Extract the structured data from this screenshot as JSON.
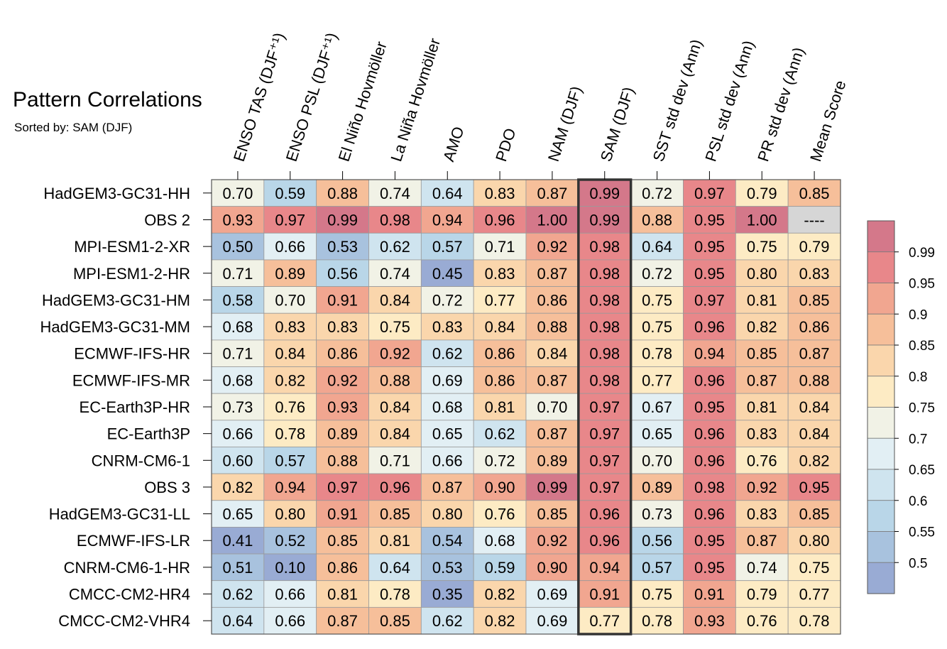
{
  "title": "Pattern Correlations",
  "subtitle": "Sorted by: SAM (DJF)",
  "chart_data": {
    "type": "heatmap",
    "columns": [
      "ENSO TAS (DJF⁺¹)",
      "ENSO PSL (DJF⁺¹)",
      "El Niño Hovmöller",
      "La Niña Hovmöller",
      "AMO",
      "PDO",
      "NAM (DJF)",
      "SAM (DJF)",
      "SST std dev (Ann)",
      "PSL std dev (Ann)",
      "PR std dev (Ann)",
      "Mean Score"
    ],
    "highlight_column": "SAM (DJF)",
    "rows": [
      {
        "label": "HadGEM3-GC31-HH",
        "values": [
          0.7,
          0.59,
          0.88,
          0.74,
          0.64,
          0.83,
          0.87,
          0.99,
          0.72,
          0.97,
          0.79,
          0.85
        ]
      },
      {
        "label": "OBS 2",
        "values": [
          0.93,
          0.97,
          0.99,
          0.98,
          0.94,
          0.96,
          1.0,
          0.99,
          0.88,
          0.95,
          1.0,
          null
        ]
      },
      {
        "label": "MPI-ESM1-2-XR",
        "values": [
          0.5,
          0.66,
          0.53,
          0.62,
          0.57,
          0.71,
          0.92,
          0.98,
          0.64,
          0.95,
          0.75,
          0.79
        ]
      },
      {
        "label": "MPI-ESM1-2-HR",
        "values": [
          0.71,
          0.89,
          0.56,
          0.74,
          0.45,
          0.83,
          0.87,
          0.98,
          0.72,
          0.95,
          0.8,
          0.83
        ]
      },
      {
        "label": "HadGEM3-GC31-HM",
        "values": [
          0.58,
          0.7,
          0.91,
          0.84,
          0.72,
          0.77,
          0.86,
          0.98,
          0.75,
          0.97,
          0.81,
          0.85
        ]
      },
      {
        "label": "HadGEM3-GC31-MM",
        "values": [
          0.68,
          0.83,
          0.83,
          0.75,
          0.83,
          0.84,
          0.88,
          0.98,
          0.75,
          0.96,
          0.82,
          0.86
        ]
      },
      {
        "label": "ECMWF-IFS-HR",
        "values": [
          0.71,
          0.84,
          0.86,
          0.92,
          0.62,
          0.86,
          0.84,
          0.98,
          0.78,
          0.94,
          0.85,
          0.87
        ]
      },
      {
        "label": "ECMWF-IFS-MR",
        "values": [
          0.68,
          0.82,
          0.92,
          0.88,
          0.69,
          0.86,
          0.87,
          0.98,
          0.77,
          0.96,
          0.87,
          0.88
        ]
      },
      {
        "label": "EC-Earth3P-HR",
        "values": [
          0.73,
          0.76,
          0.93,
          0.84,
          0.68,
          0.81,
          0.7,
          0.97,
          0.67,
          0.95,
          0.81,
          0.84
        ]
      },
      {
        "label": "EC-Earth3P",
        "values": [
          0.66,
          0.78,
          0.89,
          0.84,
          0.65,
          0.62,
          0.87,
          0.97,
          0.65,
          0.96,
          0.83,
          0.84
        ]
      },
      {
        "label": "CNRM-CM6-1",
        "values": [
          0.6,
          0.57,
          0.88,
          0.71,
          0.66,
          0.72,
          0.89,
          0.97,
          0.7,
          0.96,
          0.76,
          0.82
        ]
      },
      {
        "label": "OBS 3",
        "values": [
          0.82,
          0.94,
          0.97,
          0.96,
          0.87,
          0.9,
          0.99,
          0.97,
          0.89,
          0.98,
          0.92,
          0.95
        ]
      },
      {
        "label": "HadGEM3-GC31-LL",
        "values": [
          0.65,
          0.8,
          0.91,
          0.85,
          0.8,
          0.76,
          0.85,
          0.96,
          0.73,
          0.96,
          0.83,
          0.85
        ]
      },
      {
        "label": "ECMWF-IFS-LR",
        "values": [
          0.41,
          0.52,
          0.85,
          0.81,
          0.54,
          0.68,
          0.92,
          0.96,
          0.56,
          0.95,
          0.87,
          0.8
        ]
      },
      {
        "label": "CNRM-CM6-1-HR",
        "values": [
          0.51,
          0.1,
          0.86,
          0.64,
          0.53,
          0.59,
          0.9,
          0.94,
          0.57,
          0.95,
          0.74,
          0.75
        ]
      },
      {
        "label": "CMCC-CM2-HR4",
        "values": [
          0.62,
          0.66,
          0.81,
          0.78,
          0.35,
          0.82,
          0.69,
          0.91,
          0.75,
          0.91,
          0.79,
          0.77
        ]
      },
      {
        "label": "CMCC-CM2-VHR4",
        "values": [
          0.64,
          0.66,
          0.87,
          0.85,
          0.62,
          0.82,
          0.69,
          0.77,
          0.78,
          0.93,
          0.76,
          0.78
        ]
      }
    ],
    "missing_label": "----",
    "colorbar": {
      "tick_labels": [
        "0.99",
        "0.95",
        "0.9",
        "0.85",
        "0.8",
        "0.75",
        "0.7",
        "0.65",
        "0.6",
        "0.55",
        "0.5"
      ],
      "bins": [
        {
          "min": 0.99,
          "max": 1.01,
          "color": "#d4788a"
        },
        {
          "min": 0.95,
          "max": 0.99,
          "color": "#e8878a"
        },
        {
          "min": 0.9,
          "max": 0.95,
          "color": "#f1a690"
        },
        {
          "min": 0.85,
          "max": 0.9,
          "color": "#f6bf9a"
        },
        {
          "min": 0.8,
          "max": 0.85,
          "color": "#fad6ac"
        },
        {
          "min": 0.75,
          "max": 0.8,
          "color": "#fdebc4"
        },
        {
          "min": 0.7,
          "max": 0.75,
          "color": "#f1f2e6"
        },
        {
          "min": 0.65,
          "max": 0.7,
          "color": "#e2eff4"
        },
        {
          "min": 0.6,
          "max": 0.65,
          "color": "#cfe4ef"
        },
        {
          "min": 0.55,
          "max": 0.6,
          "color": "#b9d6e8"
        },
        {
          "min": 0.5,
          "max": 0.55,
          "color": "#a8c2de"
        },
        {
          "min": -1.0,
          "max": 0.5,
          "color": "#99abd4"
        }
      ],
      "missing_color": "#d6d6d6"
    }
  }
}
